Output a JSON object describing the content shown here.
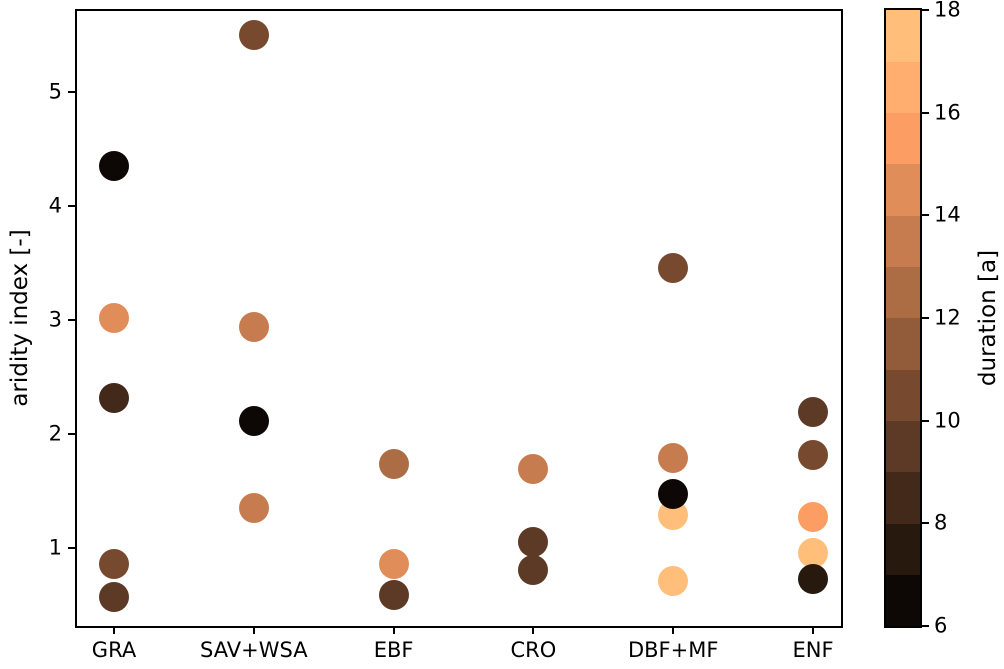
{
  "figure_title": "",
  "accent_colors": {
    "background": "#ffffff",
    "axis": "#000000"
  },
  "chart_data": {
    "type": "scatter",
    "title": "",
    "xlabel": "",
    "ylabel": "aridity index [-]",
    "grid": false,
    "x_categories": [
      "GRA",
      "SAV+WSA",
      "EBF",
      "CRO",
      "DBF+MF",
      "ENF"
    ],
    "y_ticks": [
      1,
      2,
      3,
      4,
      5
    ],
    "ylim": [
      0.32,
      5.72
    ],
    "colorbar": {
      "label": "duration [a]",
      "min": 6,
      "max": 18,
      "ticks": [
        6,
        8,
        10,
        12,
        14,
        16,
        18
      ],
      "style": "discrete, 12 one-year bins, copper colormap (black at 6 to light peach at 18)",
      "bin_colors_bottom_to_top": [
        "#0d0805",
        "#28190f",
        "#42291a",
        "#5d3a25",
        "#774a2f",
        "#925b3a",
        "#ac6c44",
        "#c77c4f",
        "#e18d5a",
        "#fc9d64",
        "#ffae6f",
        "#ffbe79"
      ]
    },
    "series": [
      {
        "category": "GRA",
        "points": [
          {
            "aridity_index": 4.35,
            "duration_a": 6,
            "color": "#0d0805"
          },
          {
            "aridity_index": 3.02,
            "duration_a": 14,
            "color": "#e18d5a"
          },
          {
            "aridity_index": 2.32,
            "duration_a": 8,
            "color": "#42291a"
          },
          {
            "aridity_index": 0.86,
            "duration_a": 10,
            "color": "#774a2f"
          },
          {
            "aridity_index": 0.57,
            "duration_a": 9,
            "color": "#5d3a25"
          }
        ]
      },
      {
        "category": "SAV+WSA",
        "points": [
          {
            "aridity_index": 5.5,
            "duration_a": 10,
            "color": "#774a2f"
          },
          {
            "aridity_index": 2.94,
            "duration_a": 13,
            "color": "#c77c4f"
          },
          {
            "aridity_index": 2.11,
            "duration_a": 6,
            "color": "#0d0805"
          },
          {
            "aridity_index": 1.35,
            "duration_a": 13,
            "color": "#c77c4f"
          }
        ]
      },
      {
        "category": "EBF",
        "points": [
          {
            "aridity_index": 1.74,
            "duration_a": 12,
            "color": "#ac6c44"
          },
          {
            "aridity_index": 0.86,
            "duration_a": 14,
            "color": "#e18d5a"
          },
          {
            "aridity_index": 0.59,
            "duration_a": 9,
            "color": "#5d3a25"
          }
        ]
      },
      {
        "category": "CRO",
        "points": [
          {
            "aridity_index": 1.69,
            "duration_a": 13,
            "color": "#c77c4f"
          },
          {
            "aridity_index": 1.05,
            "duration_a": 9,
            "color": "#5d3a25"
          },
          {
            "aridity_index": 0.81,
            "duration_a": 9,
            "color": "#5d3a25"
          }
        ]
      },
      {
        "category": "DBF+MF",
        "points": [
          {
            "aridity_index": 3.46,
            "duration_a": 10,
            "color": "#774a2f"
          },
          {
            "aridity_index": 1.79,
            "duration_a": 13,
            "color": "#c77c4f"
          },
          {
            "aridity_index": 1.29,
            "duration_a": 17,
            "color": "#ffbe79"
          },
          {
            "aridity_index": 1.47,
            "duration_a": 6,
            "color": "#0d0805"
          },
          {
            "aridity_index": 0.71,
            "duration_a": 17,
            "color": "#ffbe79"
          }
        ]
      },
      {
        "category": "ENF",
        "points": [
          {
            "aridity_index": 2.19,
            "duration_a": 9,
            "color": "#5d3a25"
          },
          {
            "aridity_index": 1.82,
            "duration_a": 10,
            "color": "#774a2f"
          },
          {
            "aridity_index": 1.27,
            "duration_a": 15,
            "color": "#fc9d64"
          },
          {
            "aridity_index": 0.96,
            "duration_a": 17,
            "color": "#ffbe79"
          },
          {
            "aridity_index": 0.73,
            "duration_a": 7,
            "color": "#28190f"
          }
        ]
      }
    ]
  }
}
